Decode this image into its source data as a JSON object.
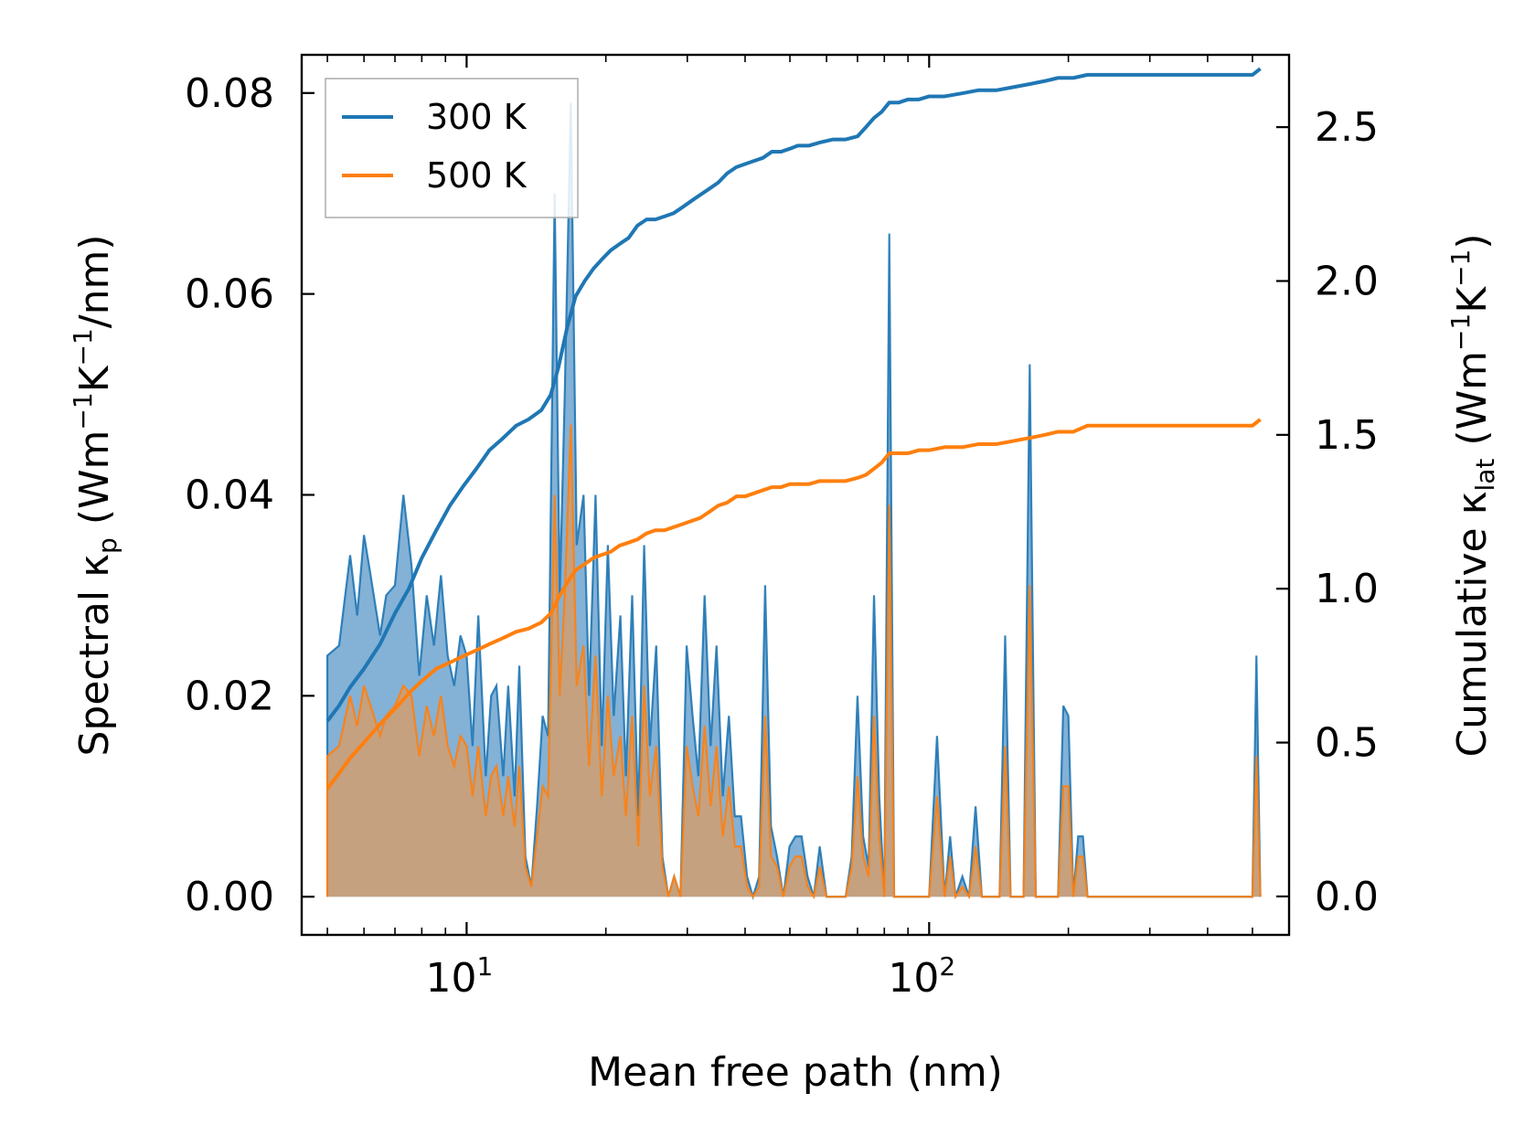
{
  "chart_data": {
    "type": "line",
    "xscale": "log",
    "xlabel": "Mean free path (nm)",
    "ylabel_left": {
      "prefix": "Spectral κ",
      "sub": "p",
      "units_open": " (Wm",
      "sup1": "−1",
      "mid": "K",
      "sup2": "−1",
      "units_close": "/nm)"
    },
    "ylabel_right": {
      "prefix": "Cumulative κ",
      "sub": "lat",
      "units_open": " (Wm",
      "sup1": "−1",
      "mid": "K",
      "sup2": "−1",
      "units_close": ")"
    },
    "xlim": [
      4.4,
      600
    ],
    "ylim_left": [
      -0.0038,
      0.0838
    ],
    "ylim_right": [
      -0.125,
      2.735
    ],
    "x_ticks_major": [
      {
        "value": 10,
        "base": "10",
        "exp": "1"
      },
      {
        "value": 100,
        "base": "10",
        "exp": "2"
      }
    ],
    "y_ticks_left": [
      "0.00",
      "0.02",
      "0.04",
      "0.06",
      "0.08"
    ],
    "y_tick_values_left": [
      0,
      0.02,
      0.04,
      0.06,
      0.08
    ],
    "y_ticks_right": [
      "0.0",
      "0.5",
      "1.0",
      "1.5",
      "2.0",
      "2.5"
    ],
    "y_tick_values_right": [
      0,
      0.5,
      1.0,
      1.5,
      2.0,
      2.5
    ],
    "legend": {
      "location": "upper-left",
      "entries": [
        "300 K",
        "500 K"
      ]
    },
    "colors": {
      "s300": "#1f77b4",
      "s500": "#ff7f0e",
      "fill300": "#7aaad3",
      "fill500": "#c8a07a"
    },
    "series": [
      {
        "name": "300 K",
        "spectral": {
          "x": [
            5.0,
            5.0,
            5.3,
            5.6,
            5.8,
            6.0,
            6.2,
            6.5,
            6.7,
            7.0,
            7.3,
            7.6,
            7.9,
            8.2,
            8.5,
            8.8,
            9.1,
            9.4,
            9.7,
            10.0,
            10.3,
            10.6,
            11.0,
            11.3,
            11.6,
            12.0,
            12.3,
            12.7,
            13.0,
            13.4,
            13.8,
            14.2,
            14.6,
            15.0,
            15.5,
            15.9,
            16.3,
            16.8,
            17.3,
            17.9,
            18.4,
            19.0,
            19.6,
            20.2,
            20.8,
            21.5,
            22.1,
            22.8,
            23.5,
            24.2,
            24.9,
            25.7,
            26.5,
            27.3,
            28.1,
            29.0,
            29.9,
            30.8,
            31.7,
            32.7,
            33.7,
            34.7,
            35.8,
            36.9,
            38.0,
            39.2,
            40.4,
            41.6,
            42.9,
            44.2,
            45.5,
            46.9,
            48.4,
            49.9,
            51.4,
            53.0,
            54.6,
            56.3,
            58.0,
            60.0,
            62.0,
            64.0,
            66.0,
            68.0,
            70.0,
            72.0,
            74.0,
            76.0,
            78.0,
            80.0,
            82.0,
            84.0,
            86.0,
            90.0,
            95.0,
            100.0,
            104.0,
            108.0,
            111.0,
            114.0,
            118.0,
            122.0,
            126.0,
            130.0,
            134.0,
            138.0,
            142.0,
            146.0,
            150.0,
            155.0,
            160.0,
            165.0,
            170.0,
            175.0,
            180.0,
            185.0,
            190.0,
            195.0,
            200.0,
            205.0,
            210.0,
            215.0,
            220.0,
            225.0,
            230.0,
            300.0,
            400.0,
            500.0,
            510.0,
            520.0
          ],
          "y": [
            0.0,
            0.024,
            0.025,
            0.034,
            0.028,
            0.036,
            0.032,
            0.026,
            0.03,
            0.031,
            0.04,
            0.033,
            0.022,
            0.03,
            0.025,
            0.032,
            0.024,
            0.021,
            0.026,
            0.024,
            0.015,
            0.028,
            0.012,
            0.02,
            0.021,
            0.012,
            0.021,
            0.01,
            0.023,
            0.004,
            0.001,
            0.009,
            0.018,
            0.016,
            0.07,
            0.03,
            0.05,
            0.079,
            0.035,
            0.04,
            0.02,
            0.04,
            0.015,
            0.035,
            0.018,
            0.028,
            0.012,
            0.03,
            0.008,
            0.035,
            0.015,
            0.025,
            0.004,
            0.0,
            0.002,
            0.0,
            0.025,
            0.018,
            0.012,
            0.03,
            0.015,
            0.025,
            0.01,
            0.018,
            0.008,
            0.008,
            0.002,
            0.0,
            0.002,
            0.031,
            0.007,
            0.004,
            0.0,
            0.005,
            0.006,
            0.006,
            0.002,
            0.0,
            0.005,
            0.0,
            0.0,
            0.0,
            0.0,
            0.004,
            0.02,
            0.006,
            0.003,
            0.03,
            0.01,
            0.0,
            0.066,
            0.0,
            0.0,
            0.0,
            0.0,
            0.0,
            0.016,
            0.0,
            0.006,
            0.0,
            0.002,
            0.0,
            0.009,
            0.0,
            0.0,
            0.0,
            0.0,
            0.026,
            0.0,
            0.0,
            0.0,
            0.053,
            0.0,
            0.0,
            0.0,
            0.0,
            0.0,
            0.019,
            0.018,
            0.0,
            0.006,
            0.006,
            0.0,
            0.0,
            0.0,
            0.0,
            0.0,
            0.0,
            0.024,
            0.0
          ]
        },
        "cumulative": {
          "x": [
            5.0,
            5.3,
            5.6,
            6.0,
            6.5,
            7.0,
            7.5,
            8.0,
            8.6,
            9.2,
            9.8,
            10.5,
            11.2,
            12.0,
            12.8,
            13.6,
            14.5,
            15.2,
            15.8,
            16.5,
            17.2,
            18.0,
            18.8,
            19.6,
            20.5,
            21.4,
            22.4,
            23.4,
            24.5,
            25.6,
            26.8,
            28.0,
            29.3,
            30.6,
            32.0,
            33.5,
            35.0,
            36.6,
            38.3,
            40.0,
            41.8,
            43.7,
            45.7,
            47.8,
            50.0,
            52.0,
            55.0,
            58.0,
            62.0,
            66.0,
            70.0,
            73.0,
            76.0,
            79.0,
            82.0,
            86.0,
            90.0,
            95.0,
            100.0,
            108.0,
            118.0,
            128.0,
            140.0,
            152.0,
            165.0,
            178.0,
            190.0,
            205.0,
            220.0,
            240.0,
            300.0,
            400.0,
            500.0,
            520.0
          ],
          "y": [
            0.57,
            0.62,
            0.68,
            0.74,
            0.82,
            0.92,
            1.0,
            1.1,
            1.19,
            1.27,
            1.33,
            1.39,
            1.45,
            1.49,
            1.53,
            1.55,
            1.58,
            1.63,
            1.72,
            1.85,
            1.95,
            2.0,
            2.04,
            2.07,
            2.1,
            2.12,
            2.14,
            2.18,
            2.2,
            2.2,
            2.21,
            2.22,
            2.24,
            2.26,
            2.28,
            2.3,
            2.32,
            2.35,
            2.37,
            2.38,
            2.39,
            2.4,
            2.42,
            2.42,
            2.43,
            2.44,
            2.44,
            2.45,
            2.46,
            2.46,
            2.47,
            2.5,
            2.53,
            2.55,
            2.58,
            2.58,
            2.59,
            2.59,
            2.6,
            2.6,
            2.61,
            2.62,
            2.62,
            2.63,
            2.64,
            2.65,
            2.66,
            2.66,
            2.67,
            2.67,
            2.67,
            2.67,
            2.67,
            2.69
          ]
        }
      },
      {
        "name": "500 K",
        "spectral": {
          "x": [
            5.0,
            5.0,
            5.3,
            5.6,
            5.8,
            6.0,
            6.2,
            6.5,
            6.7,
            7.0,
            7.3,
            7.6,
            7.9,
            8.2,
            8.5,
            8.8,
            9.1,
            9.4,
            9.7,
            10.0,
            10.3,
            10.6,
            11.0,
            11.3,
            11.6,
            12.0,
            12.3,
            12.7,
            13.0,
            13.4,
            13.8,
            14.2,
            14.6,
            15.0,
            15.5,
            15.9,
            16.3,
            16.8,
            17.3,
            17.9,
            18.4,
            19.0,
            19.6,
            20.2,
            20.8,
            21.5,
            22.1,
            22.8,
            23.5,
            24.2,
            24.9,
            25.7,
            26.5,
            27.3,
            28.1,
            29.0,
            29.9,
            30.8,
            31.7,
            32.7,
            33.7,
            34.7,
            35.8,
            36.9,
            38.0,
            39.2,
            40.4,
            41.6,
            42.9,
            44.2,
            45.5,
            46.9,
            48.4,
            49.9,
            51.4,
            53.0,
            54.6,
            56.3,
            58.0,
            60.0,
            62.0,
            64.0,
            66.0,
            68.0,
            70.0,
            72.0,
            74.0,
            76.0,
            78.0,
            80.0,
            82.0,
            84.0,
            86.0,
            90.0,
            95.0,
            100.0,
            104.0,
            108.0,
            111.0,
            114.0,
            118.0,
            122.0,
            126.0,
            130.0,
            134.0,
            138.0,
            142.0,
            146.0,
            150.0,
            155.0,
            160.0,
            165.0,
            170.0,
            175.0,
            180.0,
            185.0,
            190.0,
            195.0,
            200.0,
            205.0,
            210.0,
            215.0,
            220.0,
            225.0,
            230.0,
            300.0,
            400.0,
            500.0,
            510.0,
            520.0
          ],
          "y": [
            0.0,
            0.014,
            0.015,
            0.02,
            0.017,
            0.021,
            0.019,
            0.016,
            0.018,
            0.019,
            0.021,
            0.02,
            0.014,
            0.019,
            0.016,
            0.02,
            0.015,
            0.013,
            0.016,
            0.015,
            0.01,
            0.015,
            0.008,
            0.012,
            0.013,
            0.008,
            0.012,
            0.007,
            0.013,
            0.003,
            0.001,
            0.006,
            0.011,
            0.01,
            0.04,
            0.02,
            0.03,
            0.047,
            0.021,
            0.025,
            0.013,
            0.024,
            0.01,
            0.02,
            0.012,
            0.016,
            0.008,
            0.018,
            0.005,
            0.021,
            0.01,
            0.015,
            0.003,
            0.0,
            0.002,
            0.0,
            0.015,
            0.011,
            0.008,
            0.017,
            0.009,
            0.015,
            0.006,
            0.011,
            0.005,
            0.005,
            0.001,
            0.0,
            0.001,
            0.018,
            0.004,
            0.003,
            0.0,
            0.003,
            0.004,
            0.004,
            0.001,
            0.0,
            0.003,
            0.0,
            0.0,
            0.0,
            0.0,
            0.003,
            0.012,
            0.004,
            0.002,
            0.018,
            0.006,
            0.0,
            0.039,
            0.0,
            0.0,
            0.0,
            0.0,
            0.0,
            0.01,
            0.0,
            0.004,
            0.0,
            0.001,
            0.0,
            0.005,
            0.0,
            0.0,
            0.0,
            0.0,
            0.015,
            0.0,
            0.0,
            0.0,
            0.031,
            0.0,
            0.0,
            0.0,
            0.0,
            0.0,
            0.011,
            0.011,
            0.0,
            0.004,
            0.004,
            0.0,
            0.0,
            0.0,
            0.0,
            0.0,
            0.0,
            0.014,
            0.0
          ]
        },
        "cumulative": {
          "x": [
            5.0,
            5.3,
            5.6,
            6.0,
            6.5,
            7.0,
            7.5,
            8.0,
            8.6,
            9.2,
            9.8,
            10.5,
            11.2,
            12.0,
            12.8,
            13.6,
            14.5,
            15.2,
            15.8,
            16.5,
            17.2,
            18.0,
            18.8,
            19.6,
            20.5,
            21.4,
            22.4,
            23.4,
            24.5,
            25.6,
            26.8,
            28.0,
            29.3,
            30.6,
            32.0,
            33.5,
            35.0,
            36.6,
            38.3,
            40.0,
            41.8,
            43.7,
            45.7,
            47.8,
            50.0,
            52.0,
            55.0,
            58.0,
            62.0,
            66.0,
            70.0,
            73.0,
            76.0,
            79.0,
            82.0,
            86.0,
            90.0,
            95.0,
            100.0,
            108.0,
            118.0,
            128.0,
            140.0,
            152.0,
            165.0,
            178.0,
            190.0,
            205.0,
            220.0,
            240.0,
            300.0,
            400.0,
            500.0,
            520.0
          ],
          "y": [
            0.35,
            0.4,
            0.45,
            0.5,
            0.56,
            0.61,
            0.66,
            0.7,
            0.74,
            0.76,
            0.78,
            0.8,
            0.82,
            0.84,
            0.86,
            0.87,
            0.89,
            0.92,
            0.97,
            1.02,
            1.06,
            1.08,
            1.1,
            1.11,
            1.12,
            1.14,
            1.15,
            1.16,
            1.18,
            1.19,
            1.19,
            1.2,
            1.21,
            1.22,
            1.23,
            1.25,
            1.27,
            1.28,
            1.3,
            1.3,
            1.31,
            1.32,
            1.33,
            1.33,
            1.34,
            1.34,
            1.34,
            1.35,
            1.35,
            1.35,
            1.36,
            1.37,
            1.39,
            1.41,
            1.44,
            1.44,
            1.44,
            1.45,
            1.45,
            1.46,
            1.46,
            1.47,
            1.47,
            1.48,
            1.49,
            1.5,
            1.51,
            1.51,
            1.53,
            1.53,
            1.53,
            1.53,
            1.53,
            1.55
          ]
        }
      }
    ]
  }
}
